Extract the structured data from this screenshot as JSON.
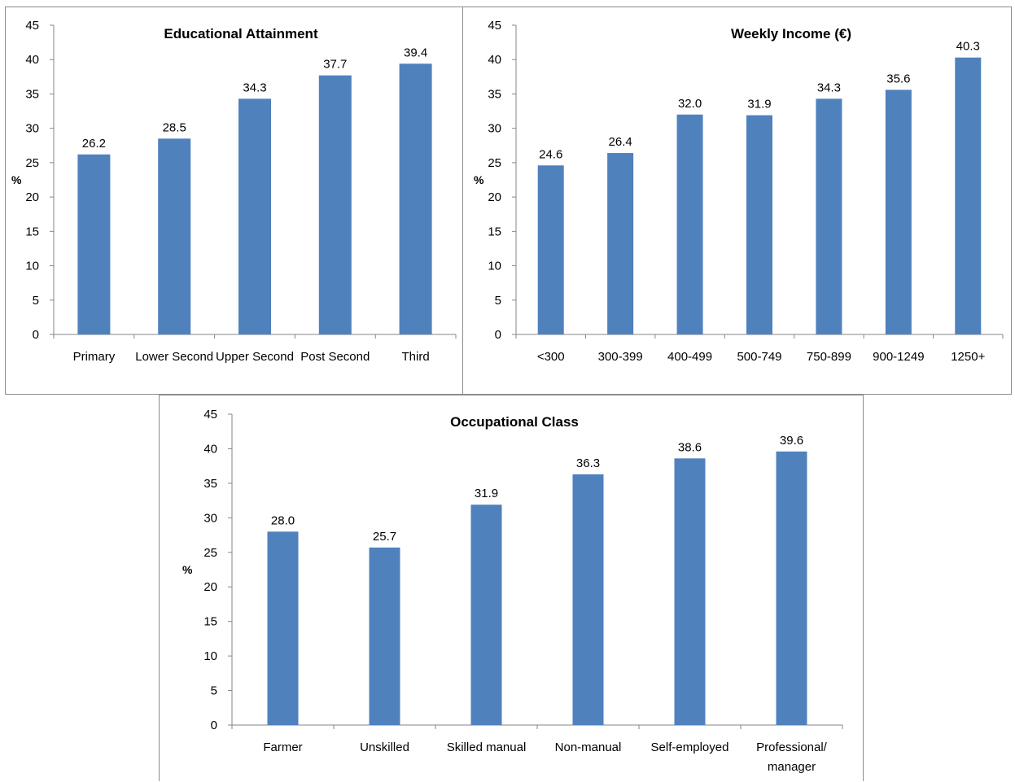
{
  "chart_data": [
    {
      "type": "bar",
      "title": "Educational Attainment",
      "ylabel": "%",
      "xlabel": "",
      "categories": [
        "Primary",
        "Lower Second",
        "Upper Second",
        "Post Second",
        "Third"
      ],
      "values": [
        26.2,
        28.5,
        34.3,
        37.7,
        39.4
      ],
      "data_labels": [
        "26.2",
        "28.5",
        "34.3",
        "37.7",
        "39.4"
      ],
      "ylim": [
        0,
        45
      ],
      "yticks": [
        0,
        5,
        10,
        15,
        20,
        25,
        30,
        35,
        40,
        45
      ],
      "grid": false,
      "legend": "none",
      "bar_color": "#4f81bd"
    },
    {
      "type": "bar",
      "title": "Weekly Income (€)",
      "ylabel": "%",
      "xlabel": "",
      "categories": [
        "<300",
        "300-399",
        "400-499",
        "500-749",
        "750-899",
        "900-1249",
        "1250+"
      ],
      "values": [
        24.6,
        26.4,
        32.0,
        31.9,
        34.3,
        35.6,
        40.3
      ],
      "data_labels": [
        "24.6",
        "26.4",
        "32.0",
        "31.9",
        "34.3",
        "35.6",
        "40.3"
      ],
      "ylim": [
        0,
        45
      ],
      "yticks": [
        0,
        5,
        10,
        15,
        20,
        25,
        30,
        35,
        40,
        45
      ],
      "grid": false,
      "legend": "none",
      "bar_color": "#4f81bd"
    },
    {
      "type": "bar",
      "title": "Occupational Class",
      "ylabel": "%",
      "xlabel": "",
      "categories": [
        "Farmer",
        "Unskilled",
        "Skilled manual",
        "Non-manual",
        "Self-employed",
        "Professional/ manager"
      ],
      "values": [
        28.0,
        25.7,
        31.9,
        36.3,
        38.6,
        39.6
      ],
      "data_labels": [
        "28.0",
        "25.7",
        "31.9",
        "36.3",
        "38.6",
        "39.6"
      ],
      "ylim": [
        0,
        45
      ],
      "yticks": [
        0,
        5,
        10,
        15,
        20,
        25,
        30,
        35,
        40,
        45
      ],
      "grid": false,
      "legend": "none",
      "bar_color": "#4f81bd"
    }
  ]
}
